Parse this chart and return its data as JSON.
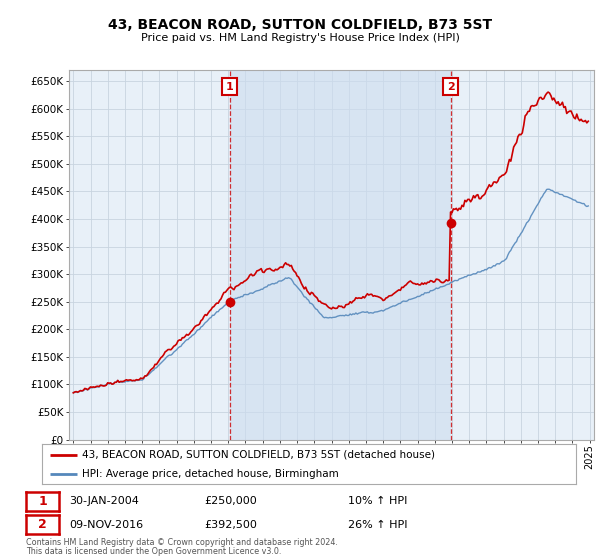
{
  "title": "43, BEACON ROAD, SUTTON COLDFIELD, B73 5ST",
  "subtitle": "Price paid vs. HM Land Registry's House Price Index (HPI)",
  "ylabel_ticks": [
    "£0",
    "£50K",
    "£100K",
    "£150K",
    "£200K",
    "£250K",
    "£300K",
    "£350K",
    "£400K",
    "£450K",
    "£500K",
    "£550K",
    "£600K",
    "£650K"
  ],
  "ytick_values": [
    0,
    50000,
    100000,
    150000,
    200000,
    250000,
    300000,
    350000,
    400000,
    450000,
    500000,
    550000,
    600000,
    650000
  ],
  "ylim": [
    0,
    670000
  ],
  "hpi_color": "#5588bb",
  "hpi_fill_color": "#ccddef",
  "price_color": "#cc0000",
  "bg_color": "#e8f0f8",
  "grid_color": "#c8d4e0",
  "purchase1_year": 2004.08,
  "purchase1_price": 250000,
  "purchase1_label": "1",
  "purchase2_year": 2016.92,
  "purchase2_price": 392500,
  "purchase2_label": "2",
  "legend_line1": "43, BEACON ROAD, SUTTON COLDFIELD, B73 5ST (detached house)",
  "legend_line2": "HPI: Average price, detached house, Birmingham",
  "annotation1_date": "30-JAN-2004",
  "annotation1_price": "£250,000",
  "annotation1_hpi": "10% ↑ HPI",
  "annotation2_date": "09-NOV-2016",
  "annotation2_price": "£392,500",
  "annotation2_hpi": "26% ↑ HPI",
  "footnote1": "Contains HM Land Registry data © Crown copyright and database right 2024.",
  "footnote2": "This data is licensed under the Open Government Licence v3.0."
}
